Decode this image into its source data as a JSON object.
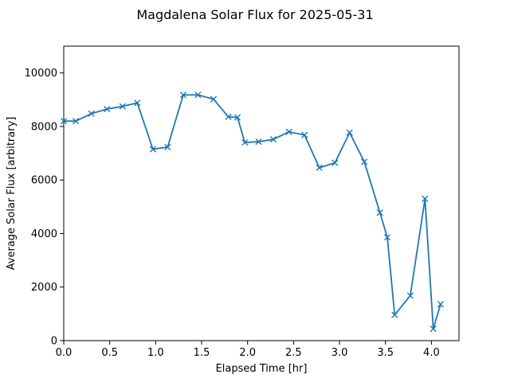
{
  "chart_data": {
    "type": "line",
    "title": "Magdalena Solar Flux for 2025-05-31",
    "xlabel": "Elapsed Time [hr]",
    "ylabel": "Average Solar Flux [arbitrary]",
    "xlim": [
      0,
      4.3
    ],
    "ylim": [
      0,
      11000
    ],
    "xticks": [
      0,
      0.5,
      1,
      1.5,
      2,
      2.5,
      3,
      3.5,
      4
    ],
    "xtick_labels": [
      "0.0",
      "0.5",
      "1.0",
      "1.5",
      "2.0",
      "2.5",
      "3.0",
      "3.5",
      "4.0"
    ],
    "yticks": [
      0,
      2000,
      4000,
      6000,
      8000,
      10000
    ],
    "ytick_labels": [
      "0",
      "2000",
      "4000",
      "6000",
      "8000",
      "10000"
    ],
    "grid": false,
    "color": "#1f77b4",
    "marker": "x",
    "series": [
      {
        "x": [
          0.0,
          0.13,
          0.3,
          0.47,
          0.64,
          0.8,
          0.97,
          1.13,
          1.3,
          1.46,
          1.63,
          1.79,
          1.89,
          1.97,
          2.12,
          2.28,
          2.45,
          2.62,
          2.78,
          2.95,
          3.11,
          3.27,
          3.44,
          3.52,
          3.6,
          3.77,
          3.93,
          4.02,
          4.1
        ],
        "y": [
          8200,
          8200,
          8480,
          8650,
          8750,
          8880,
          7150,
          7230,
          9180,
          9180,
          9020,
          8360,
          8340,
          7400,
          7430,
          7520,
          7800,
          7680,
          6460,
          6640,
          7770,
          6680,
          4780,
          3860,
          960,
          1680,
          5300,
          440,
          1360
        ]
      }
    ]
  }
}
